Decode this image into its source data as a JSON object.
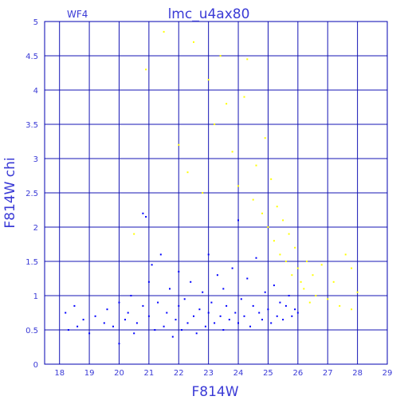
{
  "chart_data": {
    "type": "scatter",
    "title": "lmc_u4ax80",
    "panel_label": "WF4",
    "xlabel": "F814W",
    "ylabel": "F814W  chi",
    "xlim": [
      17.5,
      29
    ],
    "ylim": [
      0,
      5
    ],
    "grid": true,
    "x_ticks": [
      "18",
      "19",
      "20",
      "21",
      "22",
      "23",
      "24",
      "25",
      "26",
      "27",
      "28",
      "29"
    ],
    "y_ticks": [
      "0",
      "0.5",
      "1",
      "1.5",
      "2",
      "2.5",
      "3",
      "3.5",
      "4",
      "4.5",
      "5"
    ],
    "colors": {
      "axes": "#0000b0",
      "grid": "#1515b5",
      "text": "#3a3ad6"
    },
    "series": [
      {
        "color": "#0000ff",
        "points": [
          [
            18.2,
            0.75
          ],
          [
            18.3,
            0.5
          ],
          [
            18.5,
            0.85
          ],
          [
            18.6,
            0.55
          ],
          [
            18.8,
            0.65
          ],
          [
            19.0,
            0.45
          ],
          [
            19.2,
            0.7
          ],
          [
            19.5,
            0.6
          ],
          [
            19.6,
            0.8
          ],
          [
            19.8,
            0.55
          ],
          [
            20.0,
            0.9
          ],
          [
            20.0,
            0.3
          ],
          [
            20.2,
            0.65
          ],
          [
            20.3,
            0.75
          ],
          [
            20.4,
            1.0
          ],
          [
            20.5,
            0.45
          ],
          [
            20.6,
            0.6
          ],
          [
            20.8,
            0.85
          ],
          [
            20.8,
            2.2
          ],
          [
            20.9,
            2.15
          ],
          [
            21.0,
            0.7
          ],
          [
            21.0,
            1.2
          ],
          [
            21.1,
            1.45
          ],
          [
            21.2,
            0.5
          ],
          [
            21.3,
            0.9
          ],
          [
            21.4,
            1.6
          ],
          [
            21.5,
            0.55
          ],
          [
            21.6,
            0.75
          ],
          [
            21.7,
            1.1
          ],
          [
            21.8,
            0.4
          ],
          [
            21.9,
            0.65
          ],
          [
            22.0,
            0.85
          ],
          [
            22.0,
            1.35
          ],
          [
            22.1,
            0.5
          ],
          [
            22.2,
            0.95
          ],
          [
            22.3,
            0.6
          ],
          [
            22.4,
            1.2
          ],
          [
            22.5,
            0.7
          ],
          [
            22.6,
            0.45
          ],
          [
            22.7,
            0.8
          ],
          [
            22.8,
            1.05
          ],
          [
            22.9,
            0.55
          ],
          [
            23.0,
            0.75
          ],
          [
            23.0,
            1.6
          ],
          [
            23.1,
            0.9
          ],
          [
            23.2,
            0.6
          ],
          [
            23.3,
            1.3
          ],
          [
            23.4,
            0.7
          ],
          [
            23.5,
            0.5
          ],
          [
            23.5,
            1.1
          ],
          [
            23.6,
            0.85
          ],
          [
            23.7,
            0.65
          ],
          [
            23.8,
            1.4
          ],
          [
            23.9,
            0.75
          ],
          [
            24.0,
            0.6
          ],
          [
            24.0,
            2.1
          ],
          [
            24.1,
            0.95
          ],
          [
            24.2,
            0.7
          ],
          [
            24.3,
            1.25
          ],
          [
            24.4,
            0.55
          ],
          [
            24.5,
            0.85
          ],
          [
            24.6,
            1.55
          ],
          [
            24.7,
            0.75
          ],
          [
            24.8,
            0.65
          ],
          [
            24.9,
            1.05
          ],
          [
            25.0,
            0.8
          ],
          [
            25.1,
            0.6
          ],
          [
            25.2,
            1.15
          ],
          [
            25.3,
            0.7
          ],
          [
            25.4,
            0.9
          ],
          [
            25.5,
            0.65
          ],
          [
            25.6,
            0.85
          ],
          [
            25.7,
            1.0
          ],
          [
            25.8,
            0.7
          ],
          [
            25.9,
            0.8
          ],
          [
            26.0,
            0.75
          ]
        ]
      },
      {
        "color": "#ffff00",
        "points": [
          [
            20.5,
            1.9
          ],
          [
            20.9,
            4.3
          ],
          [
            21.5,
            4.85
          ],
          [
            22.0,
            3.2
          ],
          [
            22.3,
            2.8
          ],
          [
            22.5,
            4.7
          ],
          [
            22.8,
            2.5
          ],
          [
            23.0,
            4.15
          ],
          [
            23.2,
            3.5
          ],
          [
            23.4,
            4.5
          ],
          [
            23.6,
            3.8
          ],
          [
            23.8,
            3.1
          ],
          [
            24.0,
            2.6
          ],
          [
            24.2,
            3.9
          ],
          [
            24.3,
            4.45
          ],
          [
            24.5,
            2.4
          ],
          [
            24.6,
            2.9
          ],
          [
            24.8,
            2.2
          ],
          [
            24.9,
            3.3
          ],
          [
            25.0,
            2.0
          ],
          [
            25.1,
            2.7
          ],
          [
            25.2,
            1.8
          ],
          [
            25.3,
            2.3
          ],
          [
            25.4,
            1.6
          ],
          [
            25.5,
            2.1
          ],
          [
            25.6,
            1.5
          ],
          [
            25.7,
            1.9
          ],
          [
            25.8,
            1.3
          ],
          [
            25.9,
            1.7
          ],
          [
            26.0,
            1.4
          ],
          [
            26.1,
            1.2
          ],
          [
            26.2,
            1.1
          ],
          [
            26.3,
            1.5
          ],
          [
            26.4,
            0.9
          ],
          [
            26.5,
            1.3
          ],
          [
            26.6,
            1.0
          ],
          [
            26.8,
            1.45
          ],
          [
            27.0,
            0.95
          ],
          [
            27.2,
            1.2
          ],
          [
            27.4,
            0.85
          ],
          [
            27.6,
            1.6
          ],
          [
            27.8,
            1.4
          ],
          [
            27.8,
            0.8
          ],
          [
            28.0,
            1.05
          ]
        ]
      }
    ]
  }
}
